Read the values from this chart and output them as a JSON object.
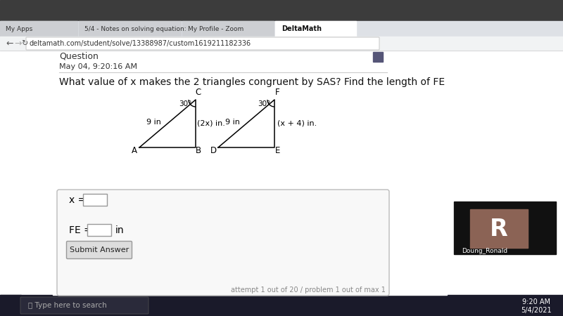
{
  "title": "What value of x makes the 2 triangles congruent by SAS? Find the length of FE",
  "bg_color": "#ffffff",
  "tri1": {
    "label_A": "A",
    "label_B": "B",
    "label_C": "C",
    "side_AC_label": "9 in",
    "side_BC_label": "(2x) in.",
    "angle_label": "30°"
  },
  "tri2": {
    "label_D": "D",
    "label_E": "E",
    "label_F": "F",
    "side_DF_label": "9 in",
    "side_EF_label": "(x + 4) in.",
    "angle_label": "30°"
  },
  "input_box1_label": "x =",
  "input_box2_label": "FE =",
  "input_box2_suffix": "in",
  "button_label": "Submit Answer",
  "attempt_text": "attempt 1 out of 20 / problem 1 out of max 1",
  "date_text": "May 04, 9:20:16 AM",
  "question_label": "Question",
  "address": "deltamath.com/student/solve/13388987/custom1619211182336",
  "tab1": "My Apps",
  "tab2": "5/4 - Notes on solving equation:",
  "tab3": "My Profile - Zoom",
  "tab4": "DeltaMath",
  "time_text": "9:20 AM",
  "date2_text": "5/4/2021",
  "taskbar_search": "Type here to search",
  "avatar_letter": "R",
  "avatar_name": "Doung_Ronald",
  "chrome_top_color": "#3c3c3c",
  "tab_bar_color": "#dee1e6",
  "active_tab_color": "#ffffff",
  "address_bar_color": "#f1f3f4",
  "content_bg": "#ffffff",
  "taskbar_color": "#1a1a2a",
  "avatar_bg": "#1a1a1a",
  "avatar_box_color": "#8b6355"
}
